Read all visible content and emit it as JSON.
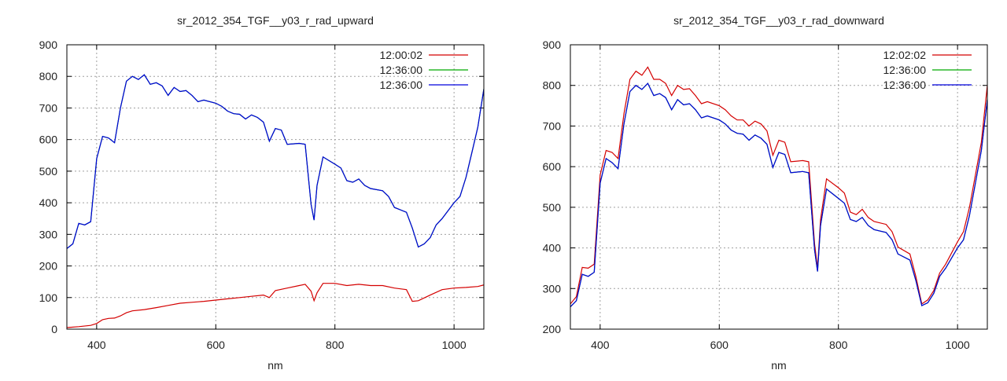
{
  "chart_data": [
    {
      "type": "line",
      "title": "sr_2012_354_TGF__y03_r_rad_upward",
      "xlabel": "nm",
      "ylabel": "",
      "xlim": [
        350,
        1050
      ],
      "ylim": [
        0,
        900
      ],
      "xticks": [
        400,
        600,
        800,
        1000
      ],
      "yticks": [
        0,
        100,
        200,
        300,
        400,
        500,
        600,
        700,
        800,
        900
      ],
      "grid": true,
      "legend": "top-right",
      "series": [
        {
          "name": "12:00:02",
          "color": "#d40000",
          "x": [
            350,
            370,
            390,
            400,
            410,
            420,
            430,
            440,
            450,
            460,
            480,
            500,
            520,
            540,
            560,
            580,
            600,
            620,
            640,
            660,
            680,
            690,
            700,
            720,
            740,
            750,
            760,
            765,
            770,
            780,
            800,
            820,
            840,
            860,
            880,
            900,
            920,
            930,
            940,
            960,
            980,
            1000,
            1020,
            1040,
            1050
          ],
          "y": [
            5,
            8,
            12,
            18,
            30,
            34,
            35,
            42,
            52,
            58,
            62,
            68,
            75,
            82,
            85,
            88,
            92,
            96,
            100,
            104,
            108,
            100,
            122,
            130,
            138,
            142,
            120,
            90,
            115,
            145,
            145,
            138,
            142,
            138,
            138,
            130,
            125,
            88,
            90,
            108,
            125,
            130,
            132,
            135,
            140
          ]
        },
        {
          "name": "12:36:00",
          "color": "#00aa00",
          "x": [
            350,
            360,
            370,
            380,
            390,
            400,
            410,
            420,
            430,
            440,
            450,
            460,
            470,
            480,
            490,
            500,
            510,
            520,
            530,
            540,
            550,
            560,
            570,
            580,
            600,
            610,
            620,
            630,
            640,
            650,
            660,
            670,
            680,
            690,
            700,
            710,
            720,
            740,
            750,
            760,
            765,
            770,
            780,
            800,
            810,
            820,
            830,
            840,
            850,
            860,
            880,
            890,
            900,
            920,
            930,
            940,
            950,
            960,
            970,
            980,
            1000,
            1010,
            1020,
            1030,
            1040,
            1050
          ],
          "y": [
            255,
            270,
            335,
            330,
            340,
            540,
            610,
            605,
            590,
            700,
            785,
            800,
            790,
            805,
            775,
            780,
            770,
            740,
            765,
            752,
            755,
            740,
            720,
            725,
            715,
            705,
            690,
            682,
            680,
            665,
            678,
            670,
            655,
            595,
            635,
            630,
            585,
            588,
            585,
            395,
            345,
            455,
            545,
            522,
            510,
            470,
            465,
            475,
            455,
            445,
            438,
            420,
            385,
            370,
            320,
            260,
            270,
            290,
            330,
            350,
            400,
            420,
            480,
            560,
            640,
            760
          ]
        },
        {
          "name": "12:36:00",
          "color": "#0000dd",
          "x": [
            350,
            360,
            370,
            380,
            390,
            400,
            410,
            420,
            430,
            440,
            450,
            460,
            470,
            480,
            490,
            500,
            510,
            520,
            530,
            540,
            550,
            560,
            570,
            580,
            600,
            610,
            620,
            630,
            640,
            650,
            660,
            670,
            680,
            690,
            700,
            710,
            720,
            740,
            750,
            760,
            765,
            770,
            780,
            800,
            810,
            820,
            830,
            840,
            850,
            860,
            880,
            890,
            900,
            920,
            930,
            940,
            950,
            960,
            970,
            980,
            1000,
            1010,
            1020,
            1030,
            1040,
            1050
          ],
          "y": [
            255,
            270,
            335,
            330,
            340,
            540,
            610,
            605,
            590,
            700,
            785,
            800,
            790,
            805,
            775,
            780,
            770,
            740,
            765,
            752,
            755,
            740,
            720,
            725,
            715,
            705,
            690,
            682,
            680,
            665,
            678,
            670,
            655,
            595,
            635,
            630,
            585,
            588,
            585,
            395,
            345,
            455,
            545,
            522,
            510,
            470,
            465,
            475,
            455,
            445,
            438,
            420,
            385,
            370,
            320,
            260,
            270,
            290,
            330,
            350,
            400,
            420,
            480,
            560,
            640,
            760
          ]
        }
      ]
    },
    {
      "type": "line",
      "title": "sr_2012_354_TGF__y03_r_rad_downward",
      "xlabel": "nm",
      "ylabel": "",
      "xlim": [
        350,
        1050
      ],
      "ylim": [
        200,
        900
      ],
      "xticks": [
        400,
        600,
        800,
        1000
      ],
      "yticks": [
        200,
        300,
        400,
        500,
        600,
        700,
        800,
        900
      ],
      "grid": true,
      "legend": "top-right",
      "series": [
        {
          "name": "12:02:02",
          "color": "#d40000",
          "x": [
            350,
            360,
            370,
            380,
            390,
            400,
            410,
            420,
            430,
            440,
            450,
            460,
            470,
            480,
            490,
            500,
            510,
            520,
            530,
            540,
            550,
            560,
            570,
            580,
            600,
            610,
            620,
            630,
            640,
            650,
            660,
            670,
            680,
            690,
            700,
            710,
            720,
            740,
            750,
            760,
            765,
            770,
            780,
            800,
            810,
            820,
            830,
            840,
            850,
            860,
            880,
            890,
            900,
            920,
            930,
            940,
            950,
            960,
            970,
            980,
            1000,
            1010,
            1020,
            1030,
            1040,
            1050
          ],
          "y": [
            262,
            280,
            352,
            350,
            360,
            580,
            640,
            635,
            620,
            730,
            815,
            835,
            825,
            845,
            815,
            815,
            805,
            775,
            800,
            790,
            792,
            775,
            755,
            760,
            750,
            740,
            725,
            715,
            715,
            700,
            712,
            705,
            688,
            628,
            665,
            660,
            612,
            615,
            612,
            410,
            350,
            470,
            570,
            548,
            535,
            488,
            482,
            495,
            475,
            465,
            458,
            440,
            402,
            385,
            330,
            262,
            272,
            295,
            338,
            360,
            415,
            440,
            500,
            580,
            660,
            800
          ]
        },
        {
          "name": "12:36:00",
          "color": "#00aa00",
          "x": [
            350,
            360,
            370,
            380,
            390,
            400,
            410,
            420,
            430,
            440,
            450,
            460,
            470,
            480,
            490,
            500,
            510,
            520,
            530,
            540,
            550,
            560,
            570,
            580,
            600,
            610,
            620,
            630,
            640,
            650,
            660,
            670,
            680,
            690,
            700,
            710,
            720,
            740,
            750,
            760,
            765,
            770,
            780,
            800,
            810,
            820,
            830,
            840,
            850,
            860,
            880,
            890,
            900,
            920,
            930,
            940,
            950,
            960,
            970,
            980,
            1000,
            1010,
            1020,
            1030,
            1040,
            1050
          ],
          "y": [
            255,
            270,
            335,
            330,
            340,
            560,
            620,
            610,
            595,
            705,
            785,
            800,
            790,
            805,
            775,
            780,
            770,
            740,
            765,
            752,
            755,
            740,
            720,
            725,
            715,
            705,
            690,
            682,
            680,
            665,
            678,
            670,
            655,
            598,
            635,
            630,
            585,
            588,
            585,
            395,
            342,
            455,
            545,
            522,
            510,
            470,
            465,
            475,
            455,
            445,
            438,
            420,
            385,
            370,
            320,
            258,
            265,
            288,
            330,
            350,
            400,
            420,
            480,
            560,
            640,
            765
          ]
        },
        {
          "name": "12:36:00",
          "color": "#0000dd",
          "x": [
            350,
            360,
            370,
            380,
            390,
            400,
            410,
            420,
            430,
            440,
            450,
            460,
            470,
            480,
            490,
            500,
            510,
            520,
            530,
            540,
            550,
            560,
            570,
            580,
            600,
            610,
            620,
            630,
            640,
            650,
            660,
            670,
            680,
            690,
            700,
            710,
            720,
            740,
            750,
            760,
            765,
            770,
            780,
            800,
            810,
            820,
            830,
            840,
            850,
            860,
            880,
            890,
            900,
            920,
            930,
            940,
            950,
            960,
            970,
            980,
            1000,
            1010,
            1020,
            1030,
            1040,
            1050
          ],
          "y": [
            255,
            270,
            335,
            330,
            340,
            560,
            620,
            610,
            595,
            705,
            785,
            800,
            790,
            805,
            775,
            780,
            770,
            740,
            765,
            752,
            755,
            740,
            720,
            725,
            715,
            705,
            690,
            682,
            680,
            665,
            678,
            670,
            655,
            598,
            635,
            630,
            585,
            588,
            585,
            395,
            342,
            455,
            545,
            522,
            510,
            470,
            465,
            475,
            455,
            445,
            438,
            420,
            385,
            370,
            320,
            258,
            265,
            288,
            330,
            350,
            400,
            420,
            480,
            560,
            640,
            765
          ]
        }
      ]
    }
  ]
}
